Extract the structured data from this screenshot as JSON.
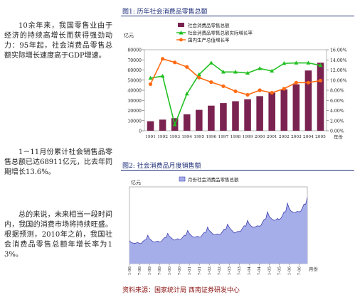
{
  "text": {
    "para1": "10余年来，我国零售业由于经济的持续高增长而获得强劲动力：95年起，社会消费品零售总额实际增长速度高于GDP增速。",
    "para2": "1－11月份累计社会销售品零售总额已达68911亿元，比去年同期增长13.6%。",
    "para3": "总的来说，未来相当一段时间内，我国的消费市场将持续旺盛。根据预测，2010年之前，我国社会消费品零售总额年增长率为13%。",
    "source": "资料来源：国家统计局 西南证券研发中心"
  },
  "colors": {
    "bar": "#7b2350",
    "green": "#22c022",
    "orange": "#ff6a12",
    "area_fill": "#a6aeea",
    "area_line": "#4040b0",
    "caption": "#1f2f78"
  },
  "chart_data": [
    {
      "type": "bar",
      "title": "图1: 历年社会消费品零售总额",
      "ylabel": "亿元",
      "xlabel": "年份",
      "categories": [
        "1991",
        "1992",
        "1993",
        "1994",
        "1995",
        "1996",
        "1997",
        "1998",
        "1999",
        "2000",
        "2001",
        "2002",
        "2003",
        "2004",
        "2005"
      ],
      "ylim": [
        0,
        80000
      ],
      "y_ticks": [
        "0",
        "10000",
        "20000",
        "30000",
        "40000",
        "50000",
        "60000",
        "70000",
        "80000"
      ],
      "y2lim": [
        0,
        0.16
      ],
      "y2_ticks": [
        "0.00%",
        "2.00%",
        "4.00%",
        "6.00%",
        "8.00%",
        "10.00%",
        "12.00%",
        "14.00%",
        "16.00%"
      ],
      "legend_position": "top",
      "series": [
        {
          "name": "社会消费品零售总额",
          "kind": "bar",
          "axis": "left",
          "values": [
            9400,
            10990,
            12460,
            16260,
            20620,
            24770,
            27300,
            29150,
            31130,
            34150,
            37600,
            40900,
            45840,
            59500,
            67180
          ]
        },
        {
          "name": "社会消费品零售总额实际增长率",
          "kind": "line",
          "axis": "right",
          "values": [
            0.104,
            0.108,
            0.012,
            0.073,
            0.111,
            0.134,
            0.116,
            0.116,
            0.114,
            0.123,
            0.118,
            0.133,
            0.134,
            0.134,
            0.129
          ]
        },
        {
          "name": "国内生产总值增长率",
          "kind": "line",
          "axis": "right",
          "values": [
            0.092,
            0.142,
            0.135,
            0.126,
            0.105,
            0.096,
            0.088,
            0.078,
            0.071,
            0.08,
            0.075,
            0.083,
            0.095,
            0.095,
            0.099
          ]
        }
      ]
    },
    {
      "type": "area",
      "title": "图2: 社会消费品月度销售额",
      "ylabel": "亿元",
      "xlabel": "月份",
      "legend_position": "top",
      "x_ticks": [
        "1-98",
        "7-98",
        "1-99",
        "7-99",
        "1-00",
        "7-00",
        "1-01",
        "7-01",
        "1-02",
        "7-02",
        "1-03",
        "7-03",
        "1-04",
        "7-04",
        "1-05",
        "7-05",
        "1-06",
        "7-06"
      ],
      "ylim": [
        0,
        8000
      ],
      "series": [
        {
          "name": "月份社会消费品零售总额",
          "x": [
            "1-98",
            "2-98",
            "3-98",
            "4-98",
            "5-98",
            "6-98",
            "7-98",
            "8-98",
            "9-98",
            "10-98",
            "11-98",
            "12-98",
            "1-99",
            "2-99",
            "3-99",
            "4-99",
            "5-99",
            "6-99",
            "7-99",
            "8-99",
            "9-99",
            "10-99",
            "11-99",
            "12-99",
            "1-00",
            "2-00",
            "3-00",
            "4-00",
            "5-00",
            "6-00",
            "7-00",
            "8-00",
            "9-00",
            "10-00",
            "11-00",
            "12-00",
            "1-01",
            "2-01",
            "3-01",
            "4-01",
            "5-01",
            "6-01",
            "7-01",
            "8-01",
            "9-01",
            "10-01",
            "11-01",
            "12-01",
            "1-02",
            "2-02",
            "3-02",
            "4-02",
            "5-02",
            "6-02",
            "7-02",
            "8-02",
            "9-02",
            "10-02",
            "11-02",
            "12-02",
            "1-03",
            "2-03",
            "3-03",
            "4-03",
            "5-03",
            "6-03",
            "7-03",
            "8-03",
            "9-03",
            "10-03",
            "11-03",
            "12-03",
            "1-04",
            "2-04",
            "3-04",
            "4-04",
            "5-04",
            "6-04",
            "7-04",
            "8-04",
            "9-04",
            "10-04",
            "11-04",
            "12-04",
            "1-05",
            "2-05",
            "3-05",
            "4-05",
            "5-05",
            "6-05",
            "7-05",
            "8-05",
            "9-05",
            "10-05",
            "11-05",
            "12-05",
            "1-06",
            "2-06",
            "3-06",
            "4-06",
            "5-06",
            "6-06",
            "7-06",
            "8-06",
            "9-06",
            "10-06",
            "11-06",
            "12-06"
          ],
          "values": [
            2400,
            2200,
            2150,
            2100,
            2150,
            2200,
            2100,
            2100,
            2300,
            2450,
            2500,
            2950,
            2600,
            2450,
            2300,
            2250,
            2300,
            2350,
            2250,
            2300,
            2500,
            2700,
            2700,
            3150,
            2850,
            2700,
            2550,
            2450,
            2500,
            2600,
            2500,
            2550,
            2750,
            2950,
            2950,
            3450,
            3150,
            2950,
            2800,
            2750,
            2800,
            2850,
            2750,
            2800,
            3050,
            3250,
            3250,
            3800,
            3450,
            3300,
            3100,
            3000,
            3050,
            3100,
            3050,
            3100,
            3350,
            3600,
            3550,
            4100,
            3800,
            3550,
            3400,
            3200,
            3250,
            3350,
            3350,
            3400,
            3700,
            3950,
            3900,
            4500,
            4150,
            3950,
            3800,
            3800,
            3850,
            3950,
            3900,
            3950,
            4300,
            4600,
            4650,
            5400,
            4950,
            4750,
            4600,
            4500,
            4550,
            4700,
            4600,
            4700,
            5000,
            5400,
            5400,
            6300,
            5800,
            5500,
            5400,
            5300,
            5350,
            5450,
            5400,
            5450,
            5800,
            6200,
            6200,
            6900
          ]
        }
      ]
    }
  ]
}
